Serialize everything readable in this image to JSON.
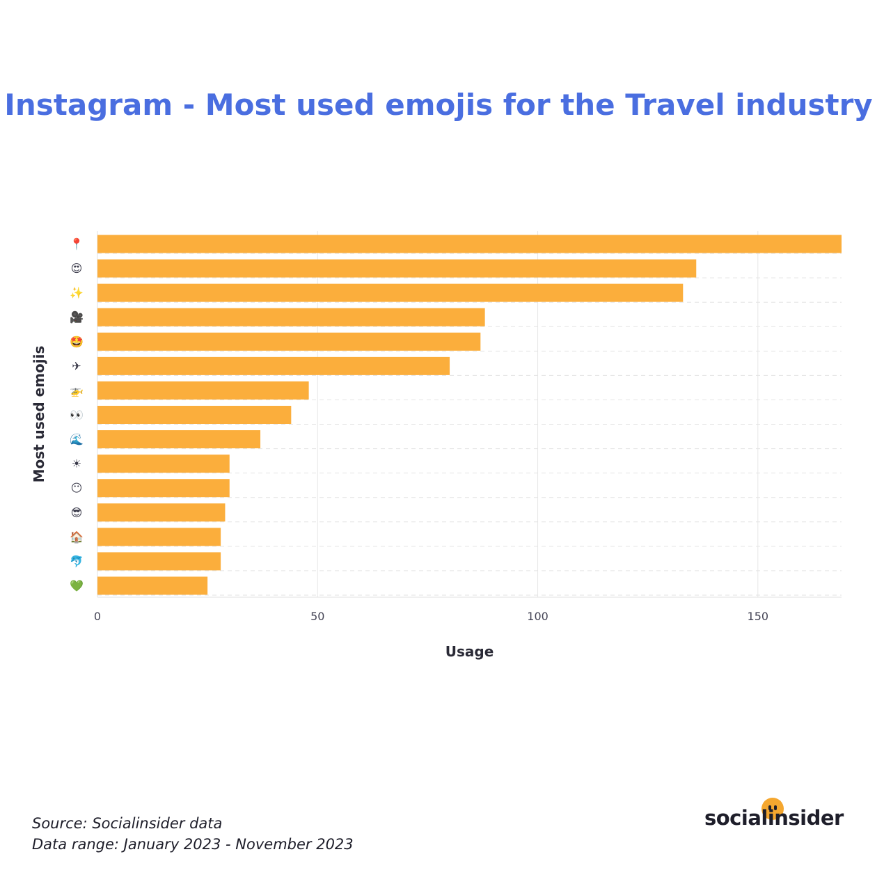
{
  "title": "Instagram - Most used emojis for the Travel industry",
  "source_line": "Source: Socialinsider data",
  "range_line": "Data range: January 2023 - November 2023",
  "brand": "socialinsider",
  "colors": {
    "bar": "#fbae3c",
    "title": "#4a6ee0",
    "brand_dot": "#f5a72f"
  },
  "chart_data": {
    "type": "bar",
    "orientation": "horizontal",
    "xlabel": "Usage",
    "ylabel": "Most used emojis",
    "xlim": [
      0,
      169
    ],
    "xticks": [
      0,
      50,
      100,
      150
    ],
    "grid": true,
    "categories": [
      "📍",
      "😍",
      "✨",
      "🎥",
      "🤩",
      "✈",
      "🚁",
      "👀",
      "🌊",
      "☀",
      "😶",
      "😎",
      "🏠",
      "🐬",
      "💚"
    ],
    "values": [
      169,
      136,
      133,
      88,
      87,
      80,
      48,
      44,
      37,
      30,
      30,
      29,
      28,
      28,
      25
    ]
  }
}
